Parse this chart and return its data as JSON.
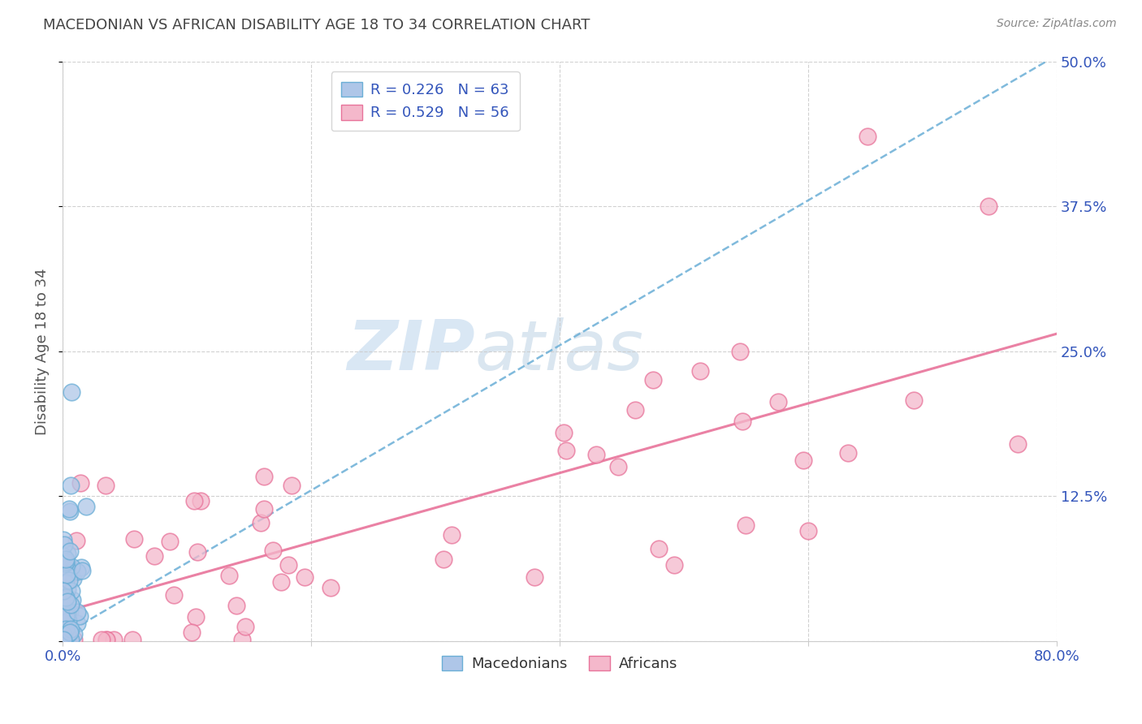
{
  "title": "MACEDONIAN VS AFRICAN DISABILITY AGE 18 TO 34 CORRELATION CHART",
  "source": "Source: ZipAtlas.com",
  "ylabel": "Disability Age 18 to 34",
  "watermark_zip": "ZIP",
  "watermark_atlas": "atlas",
  "xlim": [
    0.0,
    0.8
  ],
  "ylim": [
    0.0,
    0.5
  ],
  "macedonian_R": 0.226,
  "macedonian_N": 63,
  "african_R": 0.529,
  "african_N": 56,
  "macedonian_color": "#aec6e8",
  "african_color": "#f4b8cb",
  "macedonian_line_color": "#6aaed6",
  "african_line_color": "#e8739a",
  "grid_color": "#cccccc",
  "tick_label_color": "#3355bb",
  "title_color": "#444444",
  "source_color": "#888888"
}
